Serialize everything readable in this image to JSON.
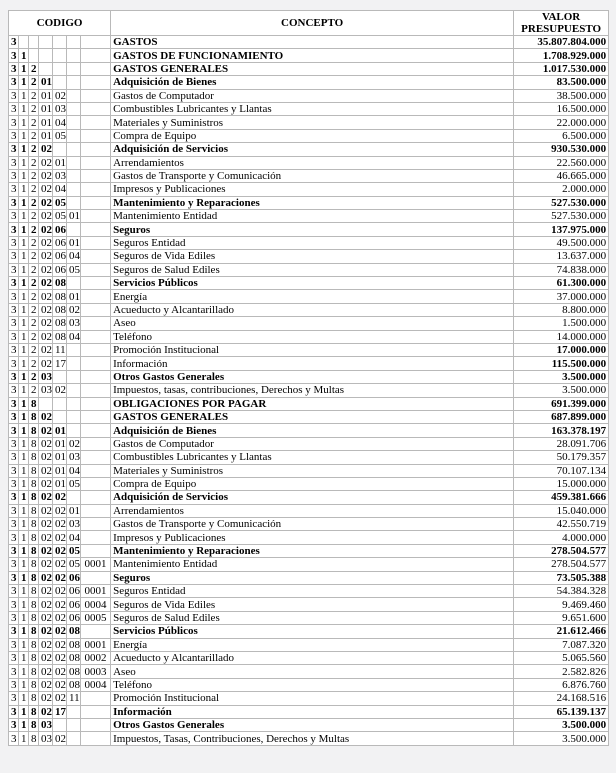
{
  "colors": {
    "page_bg": "#f2f2f3",
    "cell_bg": "#ffffff",
    "border": "#b9b9b9",
    "text": "#000000"
  },
  "table": {
    "headers": {
      "codigo": "CODIGO",
      "concepto": "CONCEPTO",
      "valor": "VALOR PRESUPUESTO"
    },
    "rows": [
      {
        "code": [
          "3",
          "",
          "",
          "",
          "",
          "",
          ""
        ],
        "concepto": "GASTOS",
        "valor": "35.807.804.000",
        "bold": "all"
      },
      {
        "code": [
          "3",
          "1",
          "",
          "",
          "",
          "",
          ""
        ],
        "concepto": "GASTOS DE FUNCIONAMIENTO",
        "valor": "1.708.929.000",
        "bold": "all"
      },
      {
        "code": [
          "3",
          "1",
          "2",
          "",
          "",
          "",
          ""
        ],
        "concepto": "GASTOS GENERALES",
        "valor": "1.017.530.000",
        "bold": "all"
      },
      {
        "code": [
          "3",
          "1",
          "2",
          "01",
          "",
          "",
          ""
        ],
        "concepto": "Adquisición de Bienes",
        "valor": "83.500.000",
        "bold": "all"
      },
      {
        "code": [
          "3",
          "1",
          "2",
          "01",
          "02",
          "",
          ""
        ],
        "concepto": "Gastos de Computador",
        "valor": "38.500.000",
        "bold": "none"
      },
      {
        "code": [
          "3",
          "1",
          "2",
          "01",
          "03",
          "",
          ""
        ],
        "concepto": "Combustibles Lubricantes y Llantas",
        "valor": "16.500.000",
        "bold": "none"
      },
      {
        "code": [
          "3",
          "1",
          "2",
          "01",
          "04",
          "",
          ""
        ],
        "concepto": "Materiales y Suministros",
        "valor": "22.000.000",
        "bold": "none"
      },
      {
        "code": [
          "3",
          "1",
          "2",
          "01",
          "05",
          "",
          ""
        ],
        "concepto": "Compra de Equipo",
        "valor": "6.500.000",
        "bold": "none"
      },
      {
        "code": [
          "3",
          "1",
          "2",
          "02",
          "",
          "",
          ""
        ],
        "concepto": "Adquisición de Servicios",
        "valor": "930.530.000",
        "bold": "all"
      },
      {
        "code": [
          "3",
          "1",
          "2",
          "02",
          "01",
          "",
          ""
        ],
        "concepto": "Arrendamientos",
        "valor": "22.560.000",
        "bold": "none"
      },
      {
        "code": [
          "3",
          "1",
          "2",
          "02",
          "03",
          "",
          ""
        ],
        "concepto": "Gastos de Transporte y Comunicación",
        "valor": "46.665.000",
        "bold": "none"
      },
      {
        "code": [
          "3",
          "1",
          "2",
          "02",
          "04",
          "",
          ""
        ],
        "concepto": "Impresos y Publicaciones",
        "valor": "2.000.000",
        "bold": "none"
      },
      {
        "code": [
          "3",
          "1",
          "2",
          "02",
          "05",
          "",
          ""
        ],
        "concepto": "Mantenimiento y Reparaciones",
        "valor": "527.530.000",
        "bold": "all"
      },
      {
        "code": [
          "3",
          "1",
          "2",
          "02",
          "05",
          "01",
          ""
        ],
        "concepto": "Mantenimiento Entidad",
        "valor": "527.530.000",
        "bold": "none"
      },
      {
        "code": [
          "3",
          "1",
          "2",
          "02",
          "06",
          "",
          ""
        ],
        "concepto": "Seguros",
        "valor": "137.975.000",
        "bold": "all"
      },
      {
        "code": [
          "3",
          "1",
          "2",
          "02",
          "06",
          "01",
          ""
        ],
        "concepto": "Seguros Entidad",
        "valor": "49.500.000",
        "bold": "none"
      },
      {
        "code": [
          "3",
          "1",
          "2",
          "02",
          "06",
          "04",
          ""
        ],
        "concepto": "Seguros de Vida Ediles",
        "valor": "13.637.000",
        "bold": "none"
      },
      {
        "code": [
          "3",
          "1",
          "2",
          "02",
          "06",
          "05",
          ""
        ],
        "concepto": "Seguros de Salud Ediles",
        "valor": "74.838.000",
        "bold": "none"
      },
      {
        "code": [
          "3",
          "1",
          "2",
          "02",
          "08",
          "",
          ""
        ],
        "concepto": "Servicios Públicos",
        "valor": "61.300.000",
        "bold": "all"
      },
      {
        "code": [
          "3",
          "1",
          "2",
          "02",
          "08",
          "01",
          ""
        ],
        "concepto": "Energía",
        "valor": "37.000.000",
        "bold": "none"
      },
      {
        "code": [
          "3",
          "1",
          "2",
          "02",
          "08",
          "02",
          ""
        ],
        "concepto": "Acueducto y Alcantarillado",
        "valor": "8.800.000",
        "bold": "none"
      },
      {
        "code": [
          "3",
          "1",
          "2",
          "02",
          "08",
          "03",
          ""
        ],
        "concepto": "Aseo",
        "valor": "1.500.000",
        "bold": "none"
      },
      {
        "code": [
          "3",
          "1",
          "2",
          "02",
          "08",
          "04",
          ""
        ],
        "concepto": "Teléfono",
        "valor": "14.000.000",
        "bold": "none"
      },
      {
        "code": [
          "3",
          "1",
          "2",
          "02",
          "11",
          "",
          ""
        ],
        "concepto": "Promoción Institucional",
        "valor": "17.000.000",
        "bold": "value"
      },
      {
        "code": [
          "3",
          "1",
          "2",
          "02",
          "17",
          "",
          ""
        ],
        "concepto": "Información",
        "valor": "115.500.000",
        "bold": "value"
      },
      {
        "code": [
          "3",
          "1",
          "2",
          "03",
          "",
          "",
          ""
        ],
        "concepto": "Otros Gastos Generales",
        "valor": "3.500.000",
        "bold": "all"
      },
      {
        "code": [
          "3",
          "1",
          "2",
          "03",
          "02",
          "",
          ""
        ],
        "concepto": "Impuestos, tasas, contribuciones, Derechos y Multas",
        "valor": "3.500.000",
        "bold": "none"
      },
      {
        "code": [
          "3",
          "1",
          "8",
          "",
          "",
          "",
          ""
        ],
        "concepto": "OBLIGACIONES POR PAGAR",
        "valor": "691.399.000",
        "bold": "all"
      },
      {
        "code": [
          "3",
          "1",
          "8",
          "02",
          "",
          "",
          ""
        ],
        "concepto": "GASTOS GENERALES",
        "valor": "687.899.000",
        "bold": "all"
      },
      {
        "code": [
          "3",
          "1",
          "8",
          "02",
          "01",
          "",
          ""
        ],
        "concepto": "Adquisición de Bienes",
        "valor": "163.378.197",
        "bold": "all"
      },
      {
        "code": [
          "3",
          "1",
          "8",
          "02",
          "01",
          "02",
          ""
        ],
        "concepto": "Gastos de Computador",
        "valor": "28.091.706",
        "bold": "none"
      },
      {
        "code": [
          "3",
          "1",
          "8",
          "02",
          "01",
          "03",
          ""
        ],
        "concepto": "Combustibles Lubricantes y Llantas",
        "valor": "50.179.357",
        "bold": "none"
      },
      {
        "code": [
          "3",
          "1",
          "8",
          "02",
          "01",
          "04",
          ""
        ],
        "concepto": "Materiales y Suministros",
        "valor": "70.107.134",
        "bold": "none"
      },
      {
        "code": [
          "3",
          "1",
          "8",
          "02",
          "01",
          "05",
          ""
        ],
        "concepto": "Compra de Equipo",
        "valor": "15.000.000",
        "bold": "none"
      },
      {
        "code": [
          "3",
          "1",
          "8",
          "02",
          "02",
          "",
          ""
        ],
        "concepto": "Adquisición de Servicios",
        "valor": "459.381.666",
        "bold": "all"
      },
      {
        "code": [
          "3",
          "1",
          "8",
          "02",
          "02",
          "01",
          ""
        ],
        "concepto": "Arrendamientos",
        "valor": "15.040.000",
        "bold": "none"
      },
      {
        "code": [
          "3",
          "1",
          "8",
          "02",
          "02",
          "03",
          ""
        ],
        "concepto": "Gastos de Transporte y Comunicación",
        "valor": "42.550.719",
        "bold": "none"
      },
      {
        "code": [
          "3",
          "1",
          "8",
          "02",
          "02",
          "04",
          ""
        ],
        "concepto": "Impresos y Publicaciones",
        "valor": "4.000.000",
        "bold": "none"
      },
      {
        "code": [
          "3",
          "1",
          "8",
          "02",
          "02",
          "05",
          ""
        ],
        "concepto": "Mantenimiento y Reparaciones",
        "valor": "278.504.577",
        "bold": "all"
      },
      {
        "code": [
          "3",
          "1",
          "8",
          "02",
          "02",
          "05",
          "0001"
        ],
        "concepto": "Mantenimiento Entidad",
        "valor": "278.504.577",
        "bold": "none"
      },
      {
        "code": [
          "3",
          "1",
          "8",
          "02",
          "02",
          "06",
          ""
        ],
        "concepto": "Seguros",
        "valor": "73.505.388",
        "bold": "all"
      },
      {
        "code": [
          "3",
          "1",
          "8",
          "02",
          "02",
          "06",
          "0001"
        ],
        "concepto": "Seguros Entidad",
        "valor": "54.384.328",
        "bold": "none"
      },
      {
        "code": [
          "3",
          "1",
          "8",
          "02",
          "02",
          "06",
          "0004"
        ],
        "concepto": "Seguros de Vida Ediles",
        "valor": "9.469.460",
        "bold": "none"
      },
      {
        "code": [
          "3",
          "1",
          "8",
          "02",
          "02",
          "06",
          "0005"
        ],
        "concepto": "Seguros de Salud Ediles",
        "valor": "9.651.600",
        "bold": "none"
      },
      {
        "code": [
          "3",
          "1",
          "8",
          "02",
          "02",
          "08",
          ""
        ],
        "concepto": "Servicios Públicos",
        "valor": "21.612.466",
        "bold": "all"
      },
      {
        "code": [
          "3",
          "1",
          "8",
          "02",
          "02",
          "08",
          "0001"
        ],
        "concepto": "Energía",
        "valor": "7.087.320",
        "bold": "none"
      },
      {
        "code": [
          "3",
          "1",
          "8",
          "02",
          "02",
          "08",
          "0002"
        ],
        "concepto": "Acueducto y Alcantarillado",
        "valor": "5.065.560",
        "bold": "none"
      },
      {
        "code": [
          "3",
          "1",
          "8",
          "02",
          "02",
          "08",
          "0003"
        ],
        "concepto": "Aseo",
        "valor": "2.582.826",
        "bold": "none"
      },
      {
        "code": [
          "3",
          "1",
          "8",
          "02",
          "02",
          "08",
          "0004"
        ],
        "concepto": "Teléfono",
        "valor": "6.876.760",
        "bold": "none"
      },
      {
        "code": [
          "3",
          "1",
          "8",
          "02",
          "02",
          "11",
          "",
          ""
        ],
        "concepto": "Promoción Institucional",
        "valor": "24.168.516",
        "bold": "none"
      },
      {
        "code": [
          "3",
          "1",
          "8",
          "02",
          "17",
          "",
          ""
        ],
        "concepto": "Información",
        "valor": "65.139.137",
        "bold": "all"
      },
      {
        "code": [
          "3",
          "1",
          "8",
          "03",
          "",
          "",
          ""
        ],
        "concepto": "Otros Gastos Generales",
        "valor": "3.500.000",
        "bold": "all"
      },
      {
        "code": [
          "3",
          "1",
          "8",
          "03",
          "02",
          "",
          ""
        ],
        "concepto": "Impuestos, Tasas, Contribuciones, Derechos y Multas",
        "valor": "3.500.000",
        "bold": "none"
      }
    ]
  }
}
